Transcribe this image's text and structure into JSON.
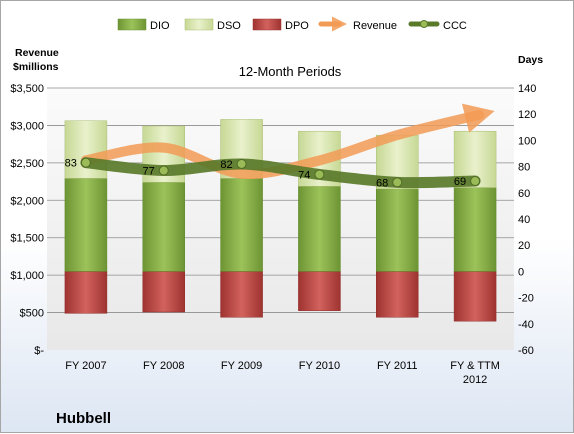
{
  "chart_data": {
    "type": "bar",
    "subtitle": "12-Month Periods",
    "company": "Hubbell",
    "left_axis_title": [
      "Revenue",
      "$millions"
    ],
    "right_axis_title": "Days",
    "left_axis": {
      "min": 0,
      "max": 3500,
      "step": 500,
      "ticks": [
        "$-",
        "$500",
        "$1,000",
        "$1,500",
        "$2,000",
        "$2,500",
        "$3,000",
        "$3,500"
      ]
    },
    "right_axis": {
      "min": -60,
      "max": 140,
      "step": 20,
      "ticks": [
        "-60",
        "-40",
        "-20",
        "0",
        "20",
        "40",
        "60",
        "80",
        "100",
        "120",
        "140"
      ]
    },
    "categories": [
      [
        "FY 2007"
      ],
      [
        "FY 2008"
      ],
      [
        "FY 2009"
      ],
      [
        "FY 2010"
      ],
      [
        "FY 2011"
      ],
      [
        "FY & TTM",
        "2012"
      ]
    ],
    "legend": [
      "DIO",
      "DSO",
      "DPO",
      "Revenue",
      "CCC"
    ],
    "colors": {
      "DIO": "#8db547",
      "DSO": "#d7e4a9",
      "DPO": "#c0504d",
      "Revenue": "#f29b56",
      "CCC": "#5a7a2a"
    },
    "series": [
      {
        "name": "DIO",
        "axis": "right",
        "values": [
          71,
          68,
          71,
          65,
          63,
          64
        ]
      },
      {
        "name": "DSO",
        "axis": "right",
        "values": [
          44,
          43,
          45,
          42,
          41,
          43
        ]
      },
      {
        "name": "DPO",
        "axis": "right",
        "values": [
          -32,
          -31,
          -35,
          -30,
          -35,
          -38
        ]
      },
      {
        "name": "Revenue",
        "axis": "left",
        "type": "line",
        "values": [
          2534,
          2704,
          2355,
          2532,
          2871,
          3142
        ]
      },
      {
        "name": "CCC",
        "axis": "right",
        "type": "line",
        "values": [
          83,
          77,
          82,
          74,
          68,
          69
        ],
        "labels": [
          "83",
          "77",
          "82",
          "74",
          "68",
          "69"
        ]
      }
    ]
  }
}
